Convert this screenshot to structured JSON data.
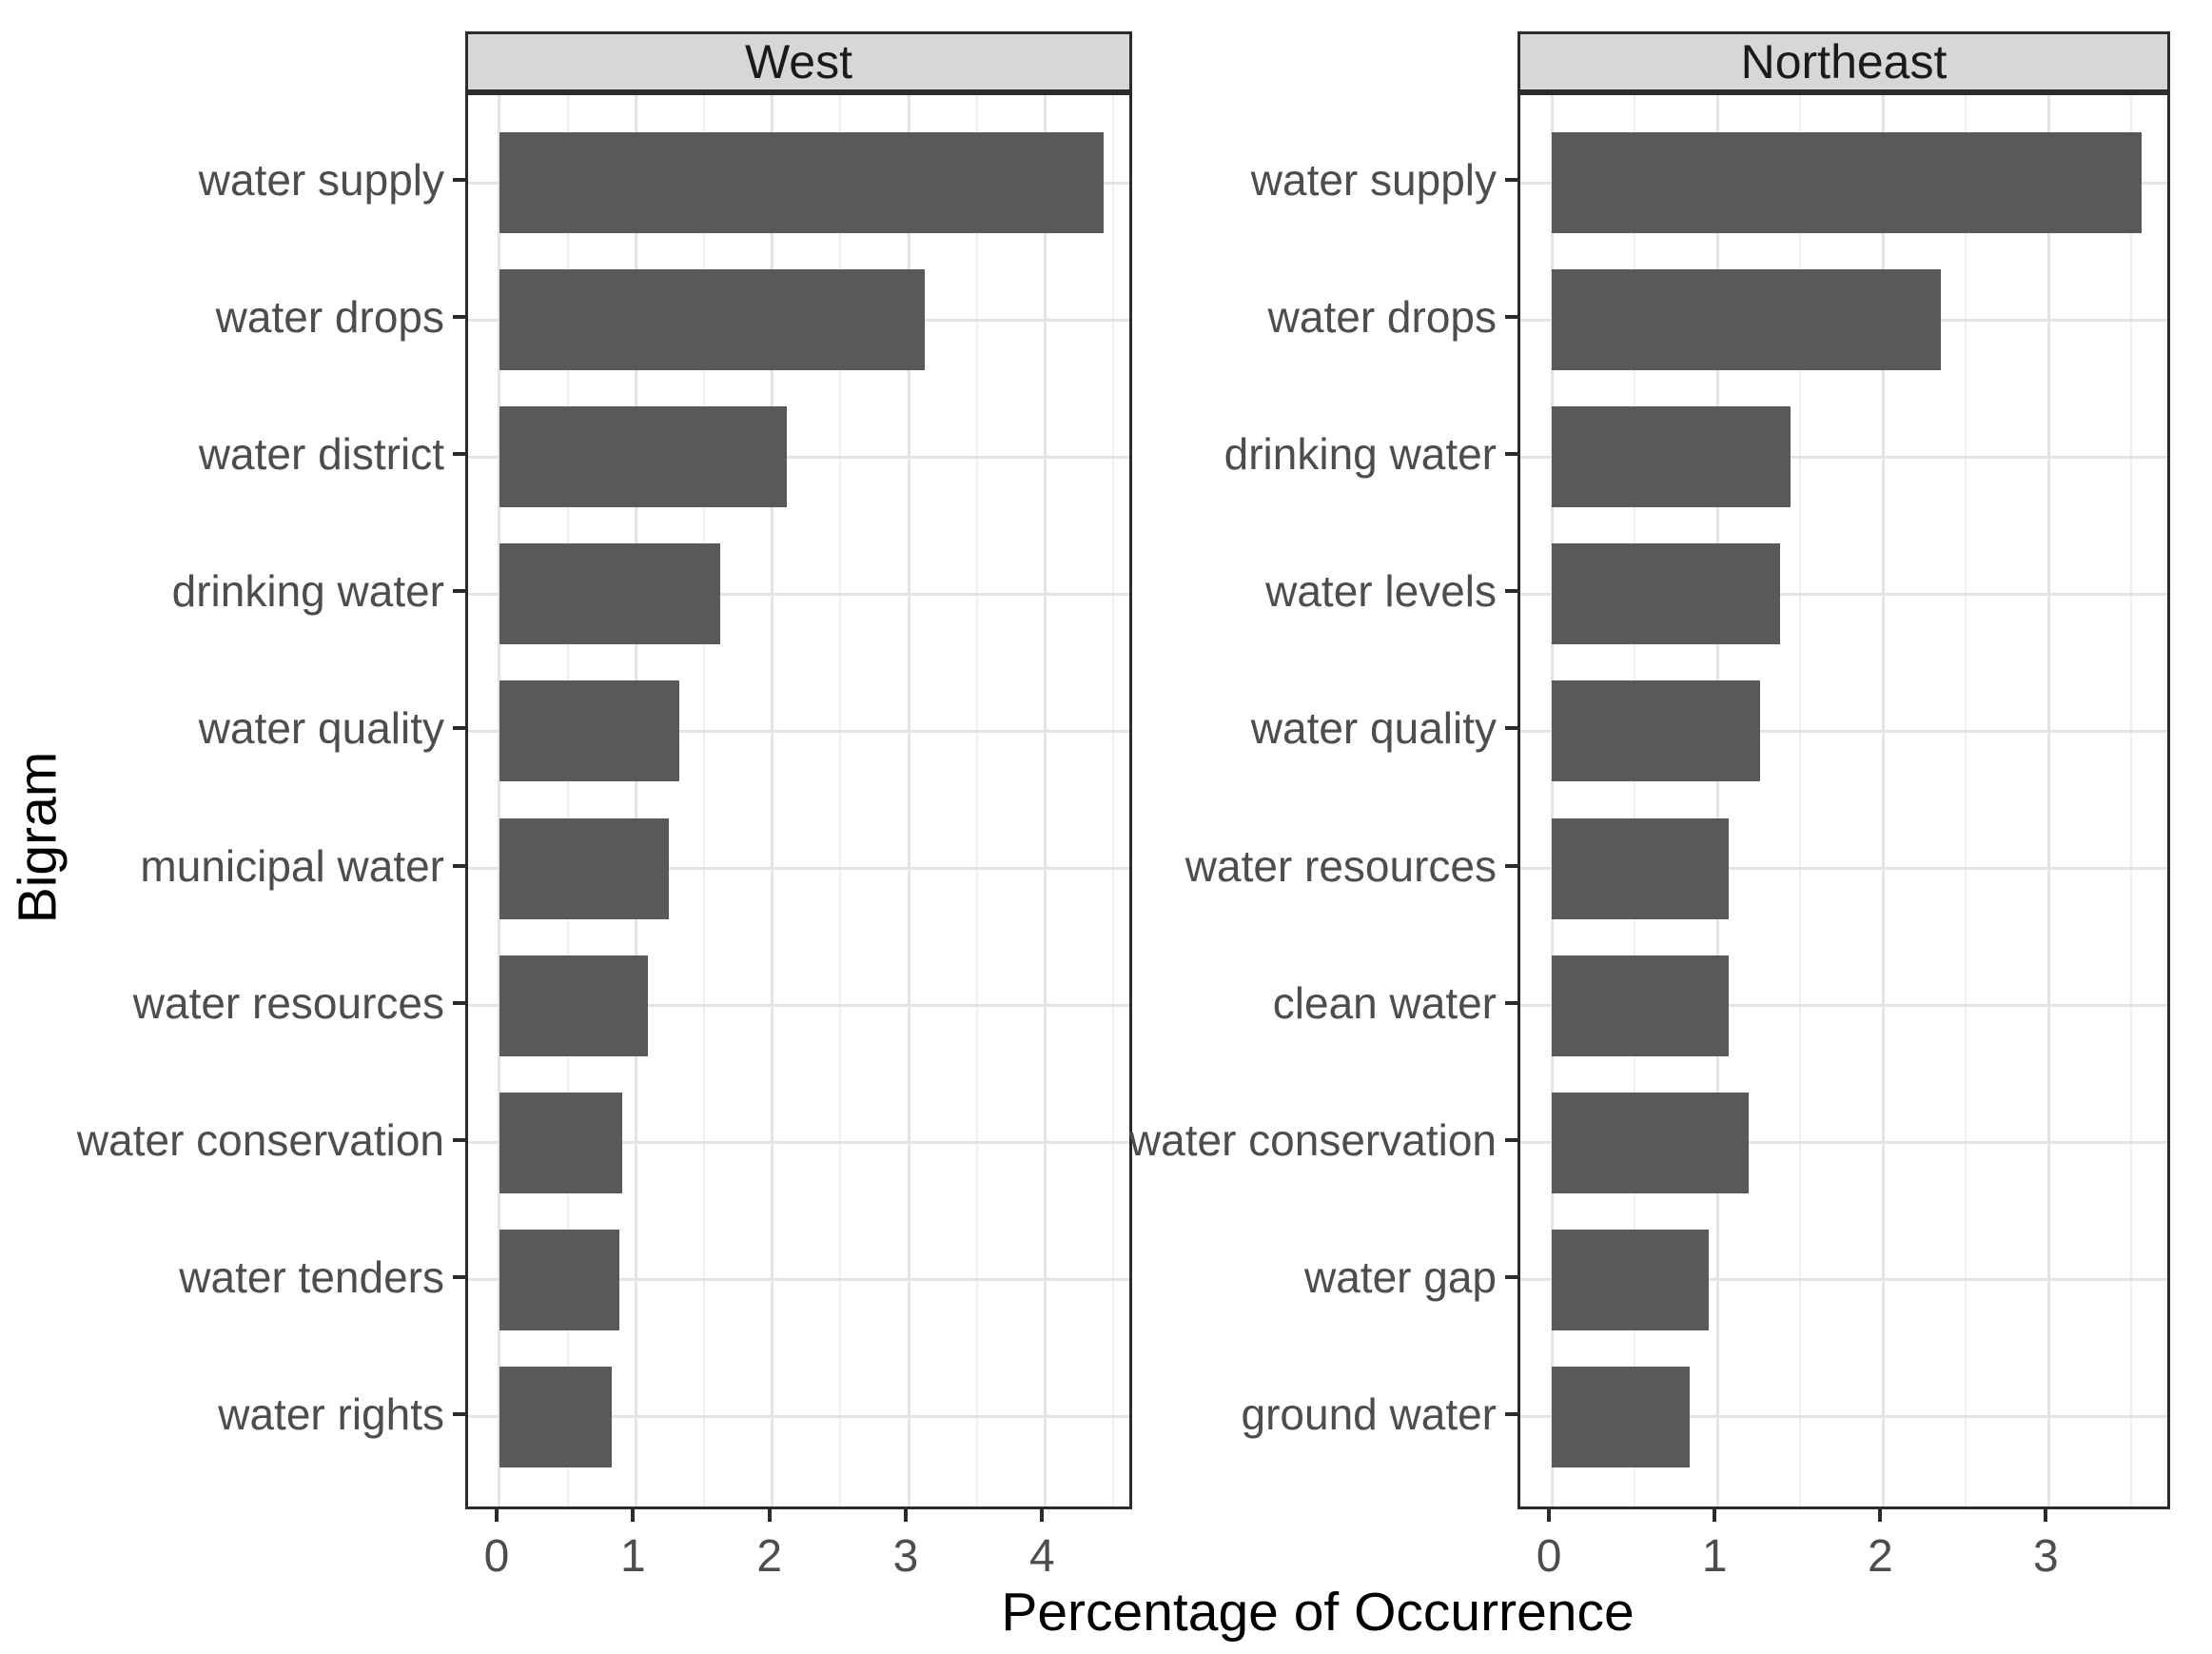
{
  "figure": {
    "x_axis_title": "Percentage of Occurrence",
    "y_axis_title": "Bigram"
  },
  "chart_data": {
    "type": "bar",
    "orientation": "horizontal",
    "faceted": true,
    "title": "",
    "xlabel": "Percentage of Occurrence",
    "ylabel": "Bigram",
    "grid": true,
    "legend": false,
    "colors": {
      "bar_fill": "#595959",
      "strip_fill": "#d7d7d7",
      "axis_text": "#4d4d4d",
      "panel_border": "#2b2b2b",
      "grid_major": "#e4e4e4",
      "grid_minor": "#efefef"
    },
    "facets": [
      {
        "label": "West",
        "categories": [
          "water supply",
          "water drops",
          "water district",
          "drinking water",
          "water quality",
          "municipal water",
          "water resources",
          "water conservation",
          "water tenders",
          "water rights"
        ],
        "values": [
          4.43,
          3.12,
          2.11,
          1.62,
          1.32,
          1.24,
          1.09,
          0.9,
          0.88,
          0.82
        ],
        "x_ticks": [
          0,
          1,
          2,
          3,
          4
        ],
        "xlim": [
          -0.23,
          4.66
        ]
      },
      {
        "label": "Northeast",
        "categories": [
          "water supply",
          "water drops",
          "drinking water",
          "water levels",
          "water quality",
          "water resources",
          "clean water",
          "water conservation",
          "water gap",
          "ground water"
        ],
        "values": [
          3.56,
          2.35,
          1.44,
          1.38,
          1.26,
          1.07,
          1.07,
          1.19,
          0.95,
          0.83
        ],
        "x_ticks": [
          0,
          1,
          2,
          3
        ],
        "xlim": [
          -0.19,
          3.75
        ]
      }
    ]
  }
}
